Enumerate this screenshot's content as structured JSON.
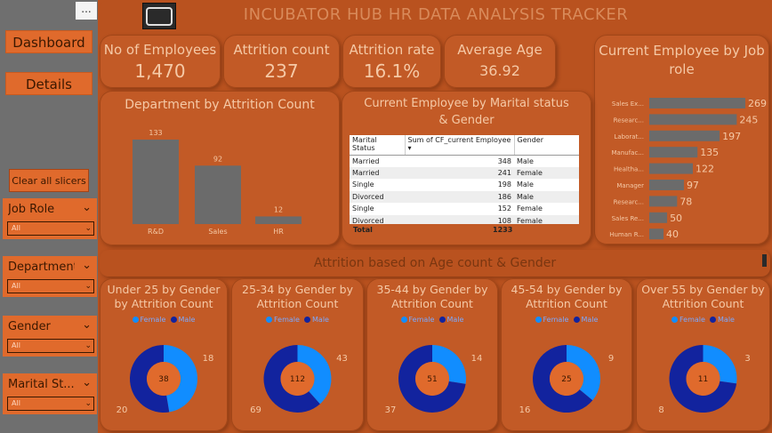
{
  "sidebar": {
    "more": "...",
    "nav": [
      "Dashboard",
      "Details"
    ],
    "clear_label": "Clear all slicers",
    "slicers": [
      {
        "label": "Job Role",
        "value": "All"
      },
      {
        "label": "Department",
        "value": "All"
      },
      {
        "label": "Gender",
        "value": "All"
      },
      {
        "label": "Marital St...",
        "value": "All"
      }
    ]
  },
  "header": {
    "title": "INCUBATOR HUB HR DATA ANALYSIS TRACKER"
  },
  "kpis": [
    {
      "label": "No of Employees",
      "value": "1,470"
    },
    {
      "label": "Attrition count",
      "value": "237"
    },
    {
      "label": "Attrition rate",
      "value": "16.1%"
    },
    {
      "label": "Average Age",
      "value": "36.92"
    }
  ],
  "department_chart": {
    "title": "Department by Attrition Count",
    "chart_data": {
      "type": "bar",
      "categories": [
        "R&D",
        "Sales",
        "HR"
      ],
      "values": [
        133,
        92,
        12
      ]
    }
  },
  "marital_table": {
    "title": "Current Employee by Marital status & Gender",
    "columns": [
      "Marital Status",
      "Sum of CF_current Employee",
      "Gender"
    ],
    "rows": [
      [
        "Married",
        "348",
        "Male"
      ],
      [
        "Married",
        "241",
        "Female"
      ],
      [
        "Single",
        "198",
        "Male"
      ],
      [
        "Divorced",
        "186",
        "Male"
      ],
      [
        "Single",
        "152",
        "Female"
      ],
      [
        "Divorced",
        "108",
        "Female"
      ]
    ],
    "total_label": "Total",
    "total_value": "1233"
  },
  "job_role_chart": {
    "title": "Current Employee by Job role",
    "chart_data": {
      "type": "bar",
      "categories": [
        "Sales Ex...",
        "Researc...",
        "Laborat...",
        "Manufac...",
        "Healtha...",
        "Manager",
        "Researc...",
        "Sales Re...",
        "Human R..."
      ],
      "values": [
        269,
        245,
        197,
        135,
        122,
        97,
        78,
        50,
        40
      ]
    }
  },
  "age_section": {
    "title": "Attrition based on Age count & Gender"
  },
  "colors": {
    "female": "#118dff",
    "male": "#12239e",
    "accent": "#e06a2c",
    "panel": "#c25a26"
  },
  "donuts": [
    {
      "title": "Under 25 by Gender by Attrition Count",
      "legend": [
        "Female",
        "Male"
      ],
      "center": "38",
      "chart_data": {
        "type": "pie",
        "labels": [
          "Female",
          "Male"
        ],
        "values": [
          18,
          20
        ]
      }
    },
    {
      "title": "25-34 by Gender by Attrition Count",
      "legend": [
        "Female",
        "Male"
      ],
      "center": "112",
      "chart_data": {
        "type": "pie",
        "labels": [
          "Female",
          "Male"
        ],
        "values": [
          43,
          69
        ]
      }
    },
    {
      "title": "35-44 by Gender by Attrition Count",
      "legend": [
        "Female",
        "Male"
      ],
      "center": "51",
      "chart_data": {
        "type": "pie",
        "labels": [
          "Female",
          "Male"
        ],
        "values": [
          14,
          37
        ]
      }
    },
    {
      "title": "45-54 by Gender by Attrition Count",
      "legend": [
        "Female",
        "Male"
      ],
      "center": "25",
      "chart_data": {
        "type": "pie",
        "labels": [
          "Female",
          "Male"
        ],
        "values": [
          9,
          16
        ]
      }
    },
    {
      "title": "Over 55 by Gender by Attrition Count",
      "legend": [
        "Female",
        "Male"
      ],
      "center": "11",
      "chart_data": {
        "type": "pie",
        "labels": [
          "Female",
          "Male"
        ],
        "values": [
          3,
          8
        ]
      }
    }
  ]
}
